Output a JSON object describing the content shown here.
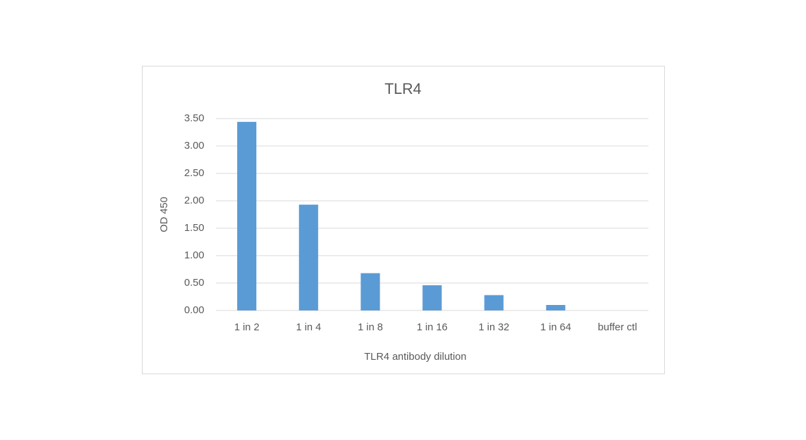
{
  "chart_data": {
    "type": "bar",
    "title": "TLR4",
    "x_label": "TLR4 antibody dilution",
    "y_label": "OD 450",
    "categories": [
      "1 in 2",
      "1 in 4",
      "1 in 8",
      "1 in 16",
      "1 in 32",
      "1 in 64",
      "buffer ctl"
    ],
    "values": [
      3.44,
      1.93,
      0.68,
      0.46,
      0.28,
      0.1,
      0
    ],
    "color": "#5b9bd5",
    "ylim": [
      0,
      3.5
    ],
    "yticks": [
      {
        "value": 0,
        "label": "0.00"
      },
      {
        "value": 0.5,
        "label": "0.50"
      },
      {
        "value": 1,
        "label": "1.00"
      },
      {
        "value": 1.5,
        "label": "1.50"
      },
      {
        "value": 2,
        "label": "2.00"
      },
      {
        "value": 2.5,
        "label": "2.50"
      },
      {
        "value": 3,
        "label": "3.00"
      },
      {
        "value": 3.5,
        "label": "3.50"
      }
    ],
    "grid": true
  }
}
